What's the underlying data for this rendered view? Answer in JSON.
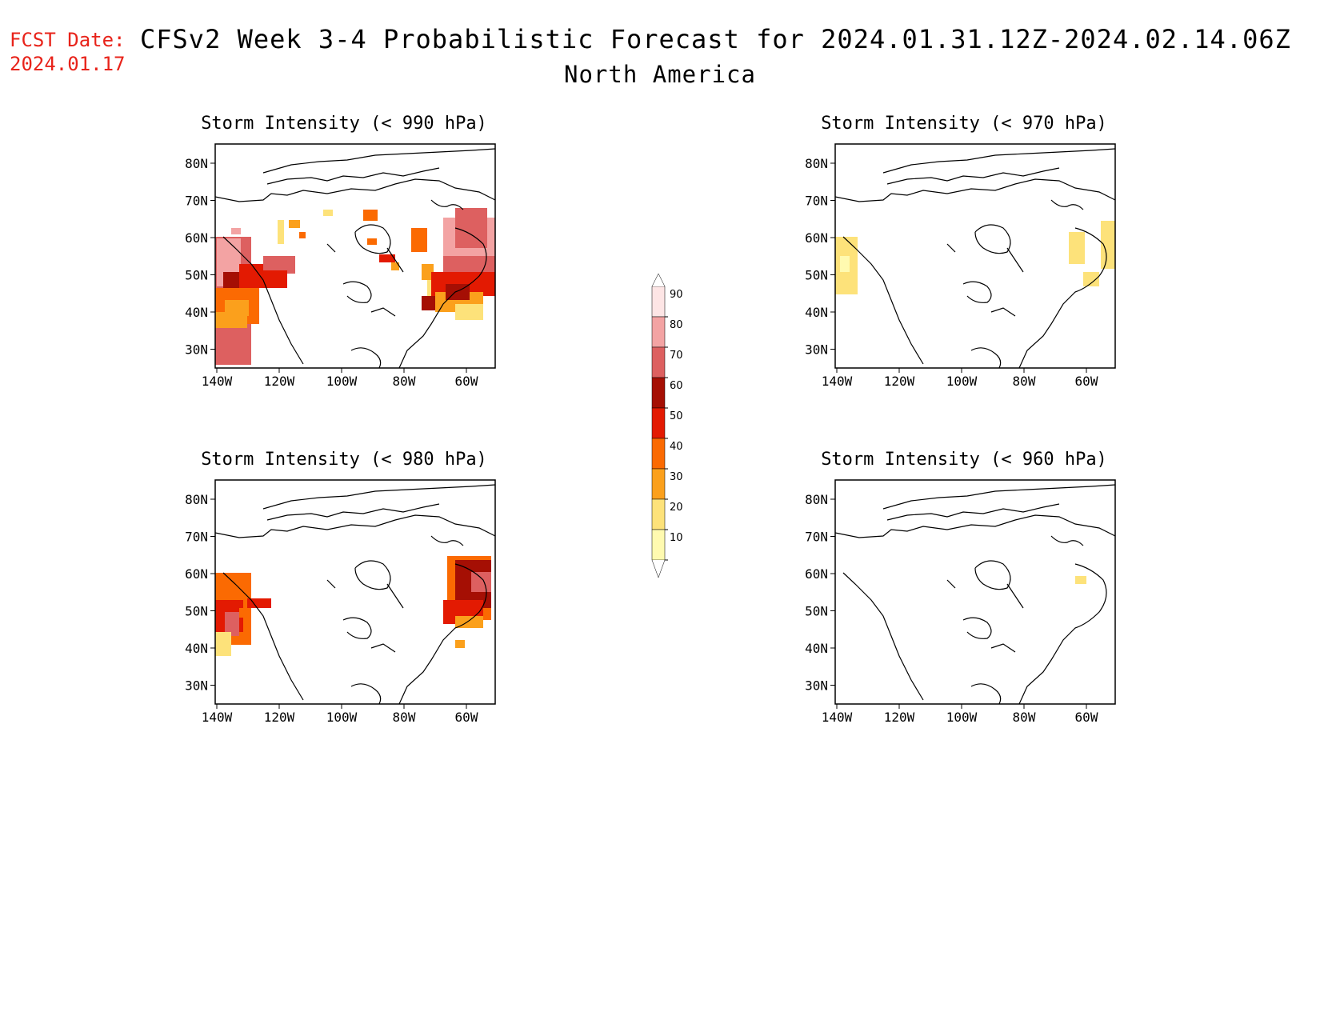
{
  "header": {
    "fcst_label": "FCST Date:",
    "fcst_date": "2024.01.17",
    "title": "CFSv2 Week 3-4 Probabilistic Forecast for 2024.01.31.12Z-2024.02.14.06Z",
    "subtitle": "North America"
  },
  "axes": {
    "lat_ticks": [
      "80N",
      "70N",
      "60N",
      "50N",
      "40N",
      "30N"
    ],
    "lon_ticks": [
      "140W",
      "120W",
      "100W",
      "80W",
      "60W"
    ]
  },
  "legend": {
    "levels": [
      "10",
      "20",
      "30",
      "40",
      "50",
      "60",
      "70",
      "80",
      "90"
    ],
    "colors": [
      "#fffab0",
      "#fde27a",
      "#fba01c",
      "#fb6a02",
      "#e31a02",
      "#a50f04",
      "#dd6060",
      "#f3a3a3",
      "#fde5e5"
    ]
  },
  "panels": [
    {
      "title": "Storm Intensity (< 990 hPa)",
      "level": "990"
    },
    {
      "title": "Storm Intensity (< 970 hPa)",
      "level": "970"
    },
    {
      "title": "Storm Intensity (< 980 hPa)",
      "level": "980"
    },
    {
      "title": "Storm Intensity (< 960 hPa)",
      "level": "960"
    }
  ]
}
